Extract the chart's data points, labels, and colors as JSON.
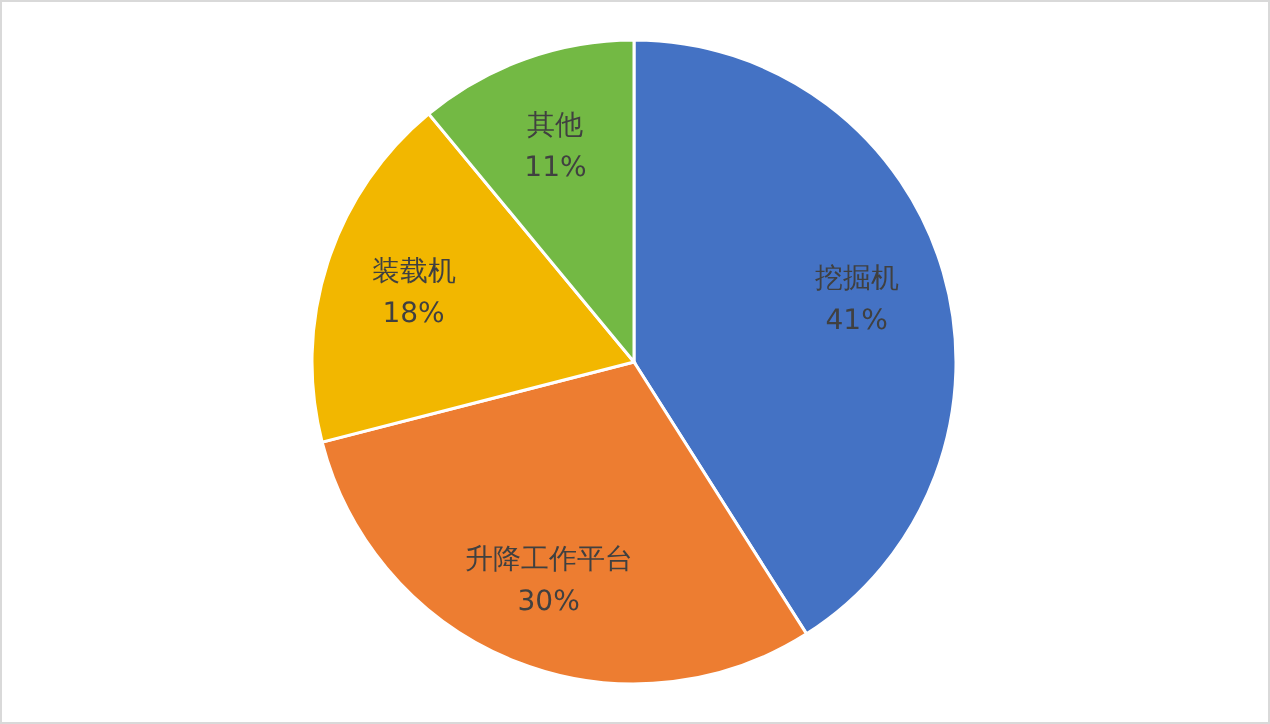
{
  "chart_data": {
    "type": "pie",
    "categories": [
      "挖掘机",
      "升降工作平台",
      "装载机",
      "其他"
    ],
    "values": [
      41,
      30,
      18,
      11
    ],
    "value_labels": [
      "41%",
      "30%",
      "18%",
      "11%"
    ],
    "colors": [
      "#4472c4",
      "#ed7d31",
      "#f2b700",
      "#73b944"
    ]
  }
}
